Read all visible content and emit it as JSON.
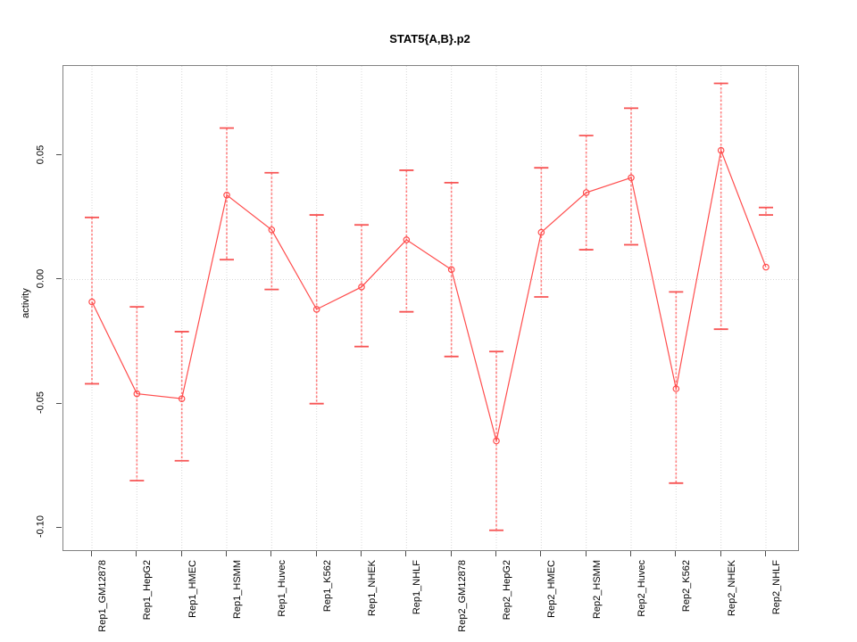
{
  "chart_data": {
    "type": "line",
    "title": "STAT5{A,B}.p2",
    "ylabel": "activity",
    "xlabel": "",
    "ylim": [
      -0.109,
      0.086
    ],
    "yticks": [
      0.05,
      0.0,
      -0.05,
      -0.1
    ],
    "ytick_labels": [
      "0.05",
      "0.00",
      "-0.05",
      "-0.10"
    ],
    "grid": "vertical dotted gridline at each category; dotted horizontal line at y=0; legend none",
    "point_style": "open red circles connected by red line, red dashed error bars with caps",
    "categories": [
      "Rep1_GM12878",
      "Rep1_HepG2",
      "Rep1_HMEC",
      "Rep1_HSMM",
      "Rep1_Huvec",
      "Rep1_K562",
      "Rep1_NHEK",
      "Rep1_NHLF",
      "Rep2_GM12878",
      "Rep2_HepG2",
      "Rep2_HMEC",
      "Rep2_HSMM",
      "Rep2_Huvec",
      "Rep2_K562",
      "Rep2_NHEK",
      "Rep2_NHLF"
    ],
    "series": [
      {
        "name": "activity",
        "values": [
          -0.009,
          -0.046,
          -0.048,
          0.034,
          0.02,
          -0.012,
          -0.003,
          0.016,
          0.004,
          -0.065,
          0.019,
          0.035,
          0.041,
          -0.044,
          0.052,
          0.005
        ]
      }
    ],
    "error_bars": {
      "upper": [
        0.025,
        -0.011,
        -0.021,
        0.061,
        0.043,
        0.026,
        0.022,
        0.044,
        0.039,
        -0.029,
        0.045,
        0.058,
        0.069,
        -0.005,
        0.079,
        0.029
      ],
      "lower": [
        -0.042,
        -0.081,
        -0.073,
        0.008,
        -0.004,
        -0.05,
        -0.027,
        -0.013,
        -0.031,
        -0.101,
        -0.007,
        0.012,
        0.014,
        -0.082,
        -0.02,
        0.026
      ]
    },
    "colors": {
      "series_line": "#ff4d4d",
      "point_stroke": "#ff4d4d",
      "error_bar": "#ff8080",
      "error_cap": "#f75454",
      "gridline": "#d8d8d8",
      "box_border": "#828282",
      "tick": "#4d4d4d",
      "text": "#000000"
    }
  }
}
